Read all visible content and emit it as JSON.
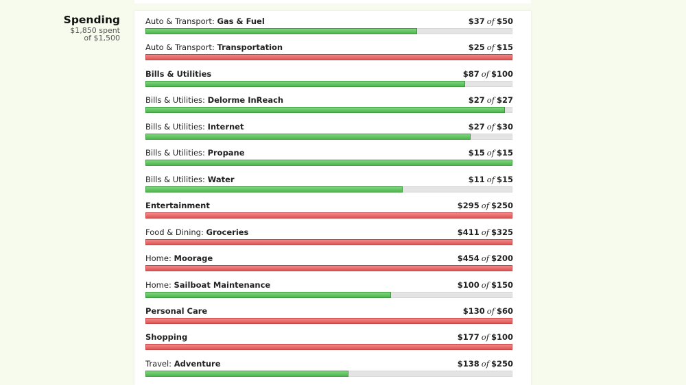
{
  "summary": {
    "title": "Spending",
    "spent": "$1,850 spent",
    "of_total": "of $1,500"
  },
  "of_word": "of",
  "colors": {
    "under_budget": "#4cb84c",
    "over_budget": "#e05454",
    "track": "#e4e4e4"
  },
  "budgets": [
    {
      "category": "Auto & Transport: ",
      "subcategory": "Gas & Fuel",
      "spent": "$37",
      "budget": "$50",
      "progress": 0.74,
      "over": false
    },
    {
      "category": "Auto & Transport: ",
      "subcategory": "Transportation",
      "spent": "$25",
      "budget": "$15",
      "progress": 1.0,
      "over": true
    },
    {
      "category": "",
      "subcategory": "Bills & Utilities",
      "spent": "$87",
      "budget": "$100",
      "progress": 0.87,
      "over": false
    },
    {
      "category": "Bills & Utilities: ",
      "subcategory": "Delorme InReach",
      "spent": "$27",
      "budget": "$27",
      "progress": 0.98,
      "over": false
    },
    {
      "category": "Bills & Utilities: ",
      "subcategory": "Internet",
      "spent": "$27",
      "budget": "$30",
      "progress": 0.885,
      "over": false
    },
    {
      "category": "Bills & Utilities: ",
      "subcategory": "Propane",
      "spent": "$15",
      "budget": "$15",
      "progress": 1.0,
      "over": false
    },
    {
      "category": "Bills & Utilities: ",
      "subcategory": "Water",
      "spent": "$11",
      "budget": "$15",
      "progress": 0.7,
      "over": false
    },
    {
      "category": "",
      "subcategory": "Entertainment",
      "spent": "$295",
      "budget": "$250",
      "progress": 1.0,
      "over": true
    },
    {
      "category": "Food & Dining: ",
      "subcategory": "Groceries",
      "spent": "$411",
      "budget": "$325",
      "progress": 1.0,
      "over": true
    },
    {
      "category": "Home: ",
      "subcategory": "Moorage",
      "spent": "$454",
      "budget": "$200",
      "progress": 1.0,
      "over": true
    },
    {
      "category": "Home: ",
      "subcategory": "Sailboat Maintenance",
      "spent": "$100",
      "budget": "$150",
      "progress": 0.667,
      "over": false
    },
    {
      "category": "",
      "subcategory": "Personal Care",
      "spent": "$130",
      "budget": "$60",
      "progress": 1.0,
      "over": true
    },
    {
      "category": "",
      "subcategory": "Shopping",
      "spent": "$177",
      "budget": "$100",
      "progress": 1.0,
      "over": true
    },
    {
      "category": "Travel: ",
      "subcategory": "Adventure",
      "spent": "$138",
      "budget": "$250",
      "progress": 0.552,
      "over": false
    }
  ]
}
